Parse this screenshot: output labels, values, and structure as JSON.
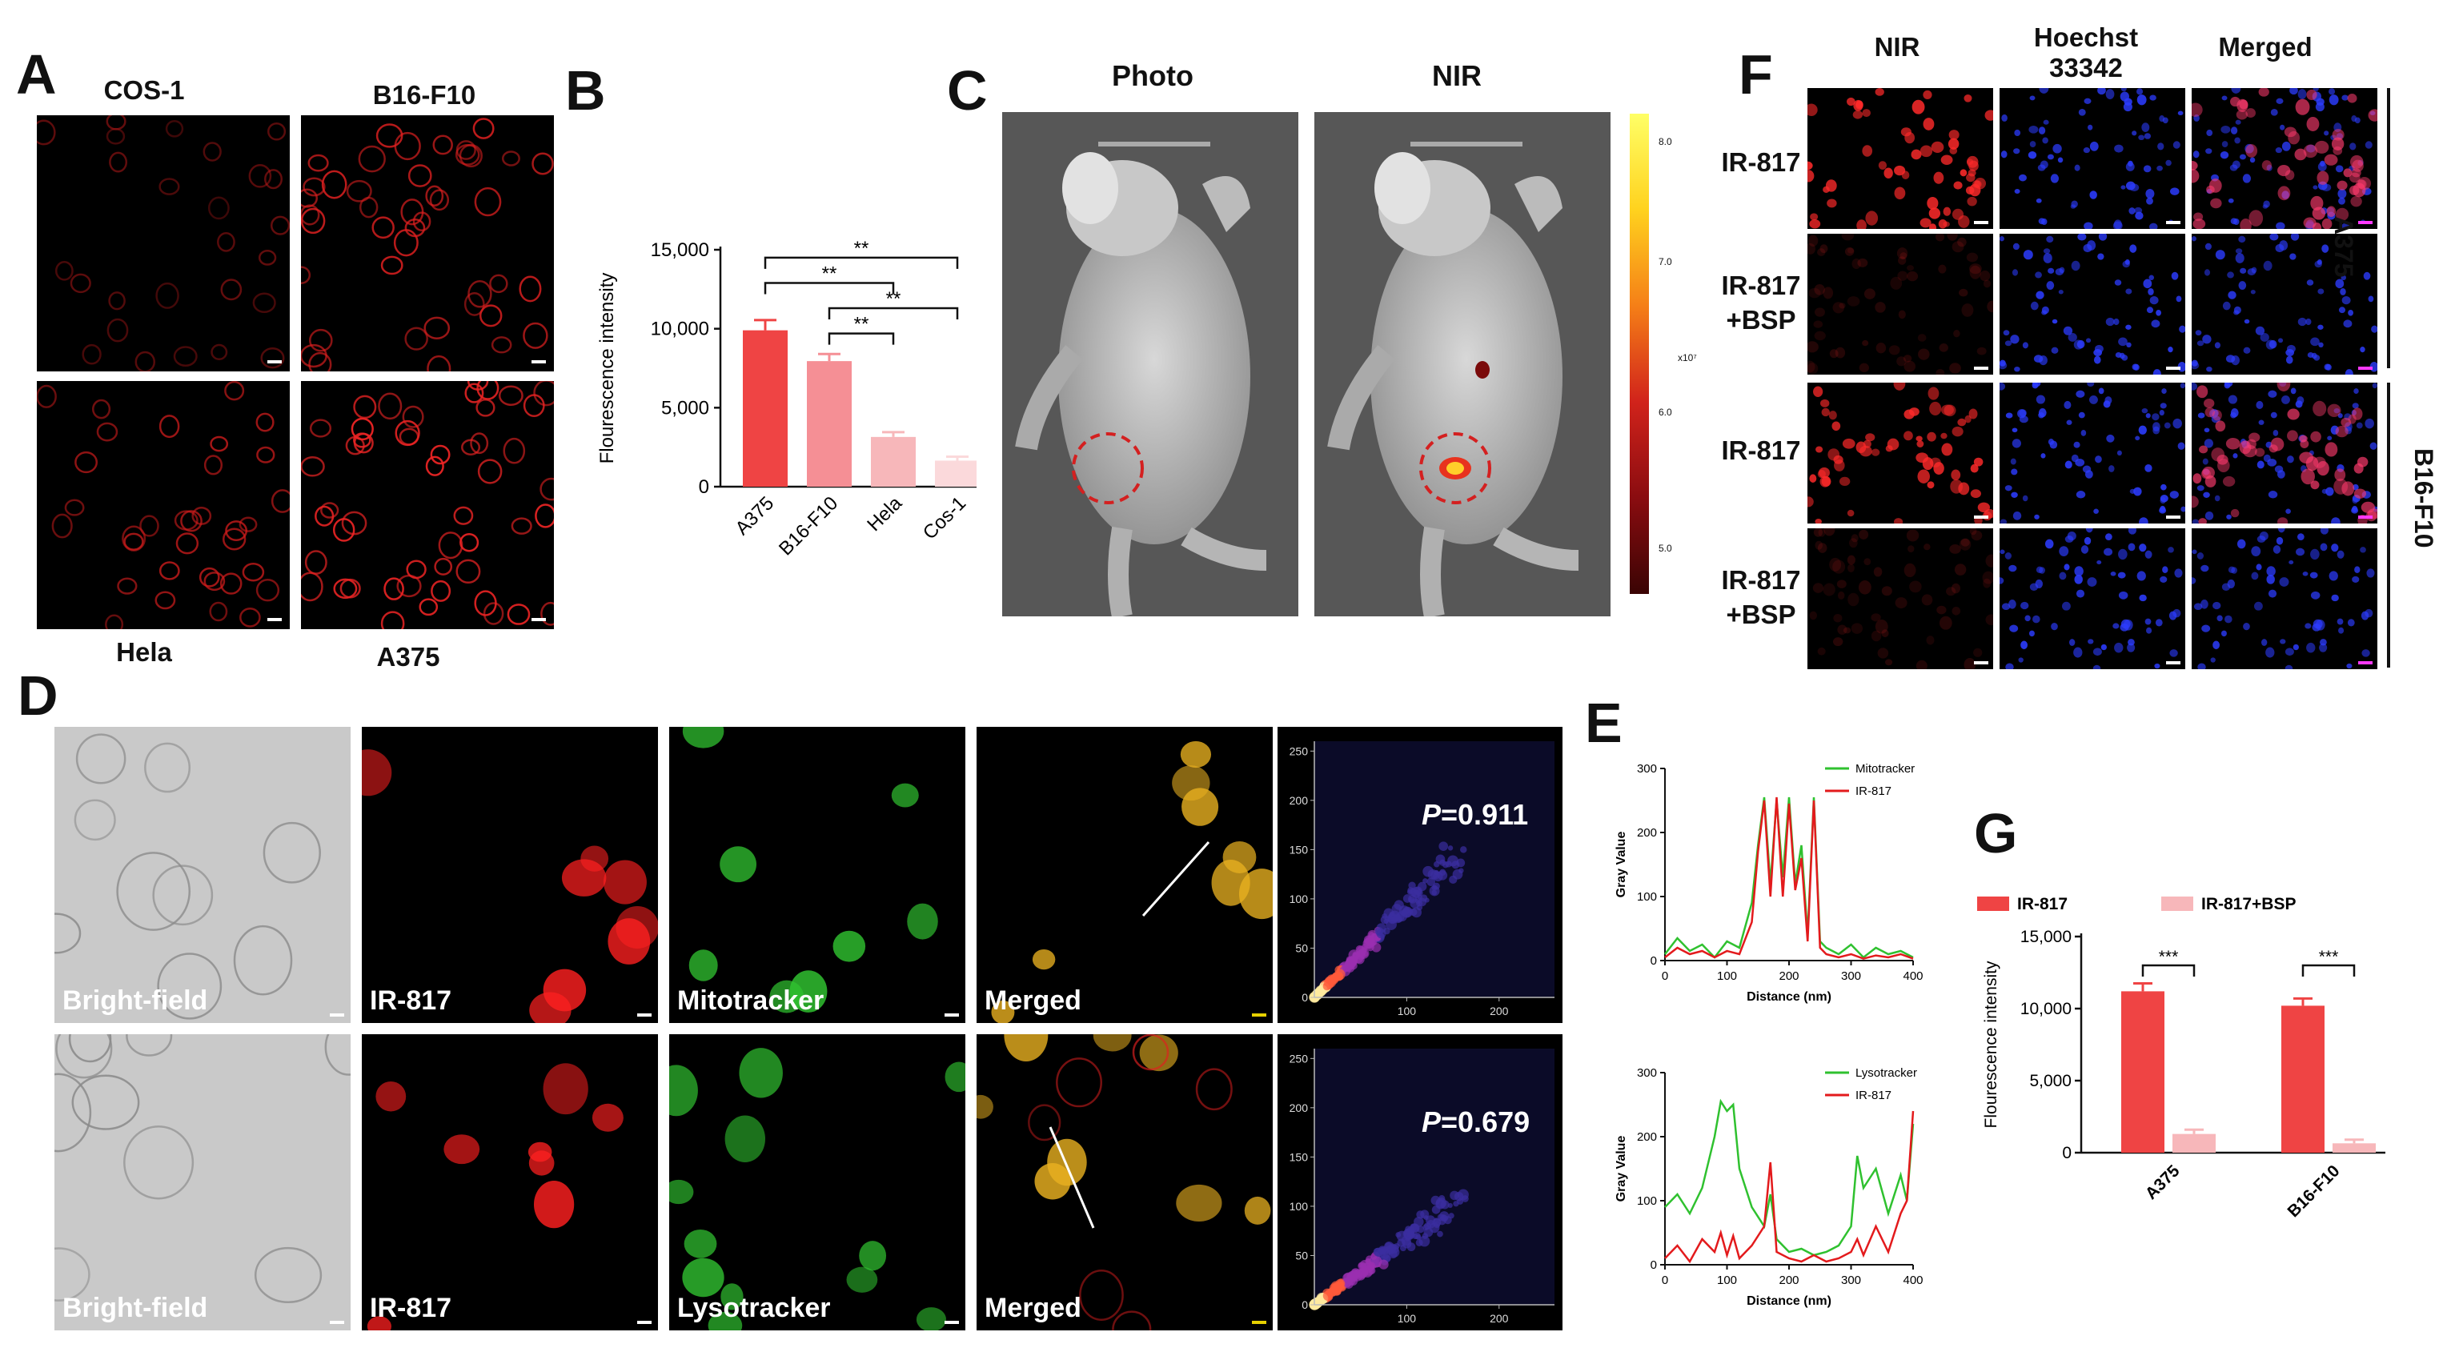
{
  "panels": {
    "A": "A",
    "B": "B",
    "C": "C",
    "D": "D",
    "E": "E",
    "F": "F",
    "G": "G"
  },
  "panel_a": {
    "labels": [
      "COS-1",
      "B16-F10",
      "Hela",
      "A375"
    ]
  },
  "panel_c": {
    "photo": "Photo",
    "nir": "NIR",
    "colorbar_ticks": [
      "8.0",
      "7.0",
      "6.0",
      "5.0"
    ],
    "colorbar_unit": "x10⁷"
  },
  "panel_d": {
    "row1": [
      "Bright-field",
      "IR-817",
      "Mitotracker",
      "Merged"
    ],
    "row2": [
      "Bright-field",
      "IR-817",
      "Lysotracker",
      "Merged"
    ],
    "p1": "=0.911",
    "p2": "=0.679",
    "p_symbol": "P",
    "scatter_ticks_y": [
      "0",
      "50",
      "100",
      "150",
      "200",
      "250"
    ],
    "scatter_ticks_x": [
      "100",
      "200"
    ]
  },
  "panel_f": {
    "cols": [
      "NIR",
      "Hoechst\n33342",
      "Merged"
    ],
    "rows": [
      "IR-817",
      "IR-817\n+BSP",
      "IR-817",
      "IR-817\n+BSP"
    ],
    "groups": [
      "A375",
      "B16-F10"
    ]
  },
  "colors": {
    "red": "#ef4444",
    "pink": "#f58f95",
    "lightpink": "#f7b7ba",
    "verylight": "#fbd9db",
    "green": "#2fc12f",
    "linered": "#e31a1c"
  },
  "chart_data": [
    {
      "id": "B",
      "type": "bar",
      "categories": [
        "A375",
        "B16-F10",
        "Hela",
        "Cos-1"
      ],
      "values": [
        9900,
        7950,
        3150,
        1650
      ],
      "errors": [
        650,
        450,
        300,
        250
      ],
      "ylabel": "Flourescence intensity",
      "ylim": [
        0,
        15000
      ],
      "yticks": [
        "0",
        "5,000",
        "10,000",
        "15,000"
      ],
      "significance": [
        [
          "A375",
          "Cos-1",
          "**"
        ],
        [
          "A375",
          "Hela",
          "**"
        ],
        [
          "B16-F10",
          "Cos-1",
          "**"
        ],
        [
          "B16-F10",
          "Hela",
          "**"
        ]
      ]
    },
    {
      "id": "E1",
      "type": "line",
      "xlabel": "Distance (nm)",
      "ylabel": "Gray Value",
      "xlim": [
        0,
        400
      ],
      "ylim": [
        0,
        300
      ],
      "xticks": [
        "0",
        "100",
        "200",
        "300",
        "400"
      ],
      "yticks": [
        "0",
        "100",
        "200",
        "300"
      ],
      "series": [
        {
          "name": "Mitotracker",
          "x": [
            0,
            20,
            40,
            60,
            80,
            100,
            120,
            140,
            150,
            160,
            170,
            180,
            190,
            200,
            210,
            220,
            230,
            240,
            250,
            260,
            280,
            300,
            320,
            340,
            360,
            380,
            400
          ],
          "y": [
            10,
            35,
            15,
            25,
            5,
            30,
            20,
            90,
            180,
            255,
            120,
            250,
            130,
            255,
            120,
            180,
            40,
            255,
            30,
            20,
            10,
            25,
            5,
            20,
            10,
            15,
            5
          ]
        },
        {
          "name": "IR-817",
          "x": [
            0,
            20,
            40,
            60,
            80,
            100,
            120,
            140,
            150,
            160,
            170,
            180,
            190,
            200,
            210,
            220,
            230,
            240,
            250,
            260,
            280,
            300,
            320,
            340,
            360,
            380,
            400
          ],
          "y": [
            5,
            20,
            10,
            15,
            5,
            15,
            10,
            60,
            170,
            250,
            100,
            255,
            100,
            245,
            110,
            160,
            30,
            250,
            20,
            10,
            5,
            10,
            3,
            8,
            5,
            10,
            3
          ]
        }
      ]
    },
    {
      "id": "E2",
      "type": "line",
      "xlabel": "Distance (nm)",
      "ylabel": "Gray Value",
      "xlim": [
        0,
        400
      ],
      "ylim": [
        0,
        300
      ],
      "xticks": [
        "0",
        "100",
        "200",
        "300",
        "400"
      ],
      "yticks": [
        "0",
        "100",
        "200",
        "300"
      ],
      "series": [
        {
          "name": "Lysotracker",
          "x": [
            0,
            20,
            40,
            60,
            80,
            90,
            100,
            110,
            120,
            140,
            160,
            170,
            180,
            200,
            220,
            240,
            260,
            280,
            300,
            310,
            320,
            340,
            360,
            380,
            390,
            400
          ],
          "y": [
            90,
            110,
            80,
            120,
            200,
            255,
            240,
            250,
            150,
            90,
            60,
            110,
            40,
            20,
            25,
            15,
            20,
            30,
            60,
            170,
            120,
            150,
            80,
            140,
            100,
            220
          ]
        },
        {
          "name": "IR-817",
          "x": [
            0,
            20,
            40,
            60,
            80,
            90,
            100,
            110,
            120,
            140,
            160,
            170,
            180,
            200,
            220,
            240,
            260,
            280,
            300,
            310,
            320,
            340,
            360,
            380,
            390,
            400
          ],
          "y": [
            10,
            30,
            5,
            40,
            20,
            50,
            15,
            45,
            10,
            30,
            60,
            160,
            20,
            10,
            5,
            15,
            5,
            10,
            20,
            40,
            15,
            60,
            20,
            80,
            100,
            240
          ]
        }
      ]
    },
    {
      "id": "G",
      "type": "bar",
      "categories": [
        "A375",
        "B16-F10"
      ],
      "series": [
        {
          "name": "IR-817",
          "values": [
            11200,
            10200
          ],
          "errors": [
            550,
            500
          ]
        },
        {
          "name": "IR-817+BSP",
          "values": [
            1300,
            650
          ],
          "errors": [
            300,
            250
          ]
        }
      ],
      "ylabel": "Flourescence intensity",
      "ylim": [
        0,
        15000
      ],
      "yticks": [
        "0",
        "5,000",
        "10,000",
        "15,000"
      ],
      "significance": [
        "***",
        "***"
      ]
    }
  ]
}
